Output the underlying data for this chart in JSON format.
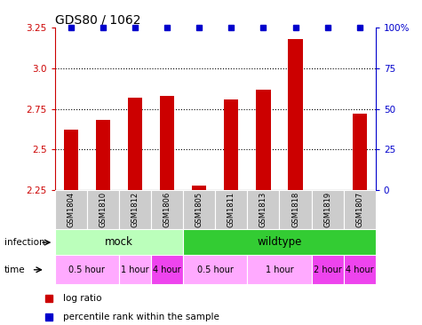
{
  "title": "GDS80 / 1062",
  "samples": [
    "GSM1804",
    "GSM1810",
    "GSM1812",
    "GSM1806",
    "GSM1805",
    "GSM1811",
    "GSM1813",
    "GSM1818",
    "GSM1819",
    "GSM1807"
  ],
  "log_ratio": [
    2.62,
    2.68,
    2.82,
    2.83,
    2.28,
    2.81,
    2.87,
    3.18,
    2.25,
    2.72
  ],
  "percentile": [
    100,
    100,
    100,
    100,
    100,
    100,
    100,
    100,
    100,
    100
  ],
  "ylim": [
    2.25,
    3.25
  ],
  "yticks": [
    2.25,
    2.5,
    2.75,
    3.0,
    3.25
  ],
  "right_yticks": [
    0,
    25,
    50,
    75,
    100
  ],
  "bar_color": "#cc0000",
  "dot_color": "#0000cc",
  "infection_mock_color": "#bbffbb",
  "infection_wildtype_color": "#33cc33",
  "infection_groups": [
    {
      "label": "mock",
      "start": 0,
      "end": 4
    },
    {
      "label": "wildtype",
      "start": 4,
      "end": 10
    }
  ],
  "time_groups": [
    {
      "label": "0.5 hour",
      "start": 0,
      "end": 2,
      "color": "#ffaaff"
    },
    {
      "label": "1 hour",
      "start": 2,
      "end": 3,
      "color": "#ffaaff"
    },
    {
      "label": "4 hour",
      "start": 3,
      "end": 4,
      "color": "#ee44ee"
    },
    {
      "label": "0.5 hour",
      "start": 4,
      "end": 6,
      "color": "#ffaaff"
    },
    {
      "label": "1 hour",
      "start": 6,
      "end": 8,
      "color": "#ffaaff"
    },
    {
      "label": "2 hour",
      "start": 8,
      "end": 9,
      "color": "#ee44ee"
    },
    {
      "label": "4 hour",
      "start": 9,
      "end": 10,
      "color": "#ee44ee"
    }
  ],
  "legend_items": [
    {
      "label": "log ratio",
      "color": "#cc0000"
    },
    {
      "label": "percentile rank within the sample",
      "color": "#0000cc"
    }
  ],
  "dotted_yticks": [
    2.5,
    2.75,
    3.0
  ],
  "axis_label_color_left": "#cc0000",
  "axis_label_color_right": "#0000cc",
  "sample_bg_color": "#cccccc",
  "bar_width": 0.45
}
